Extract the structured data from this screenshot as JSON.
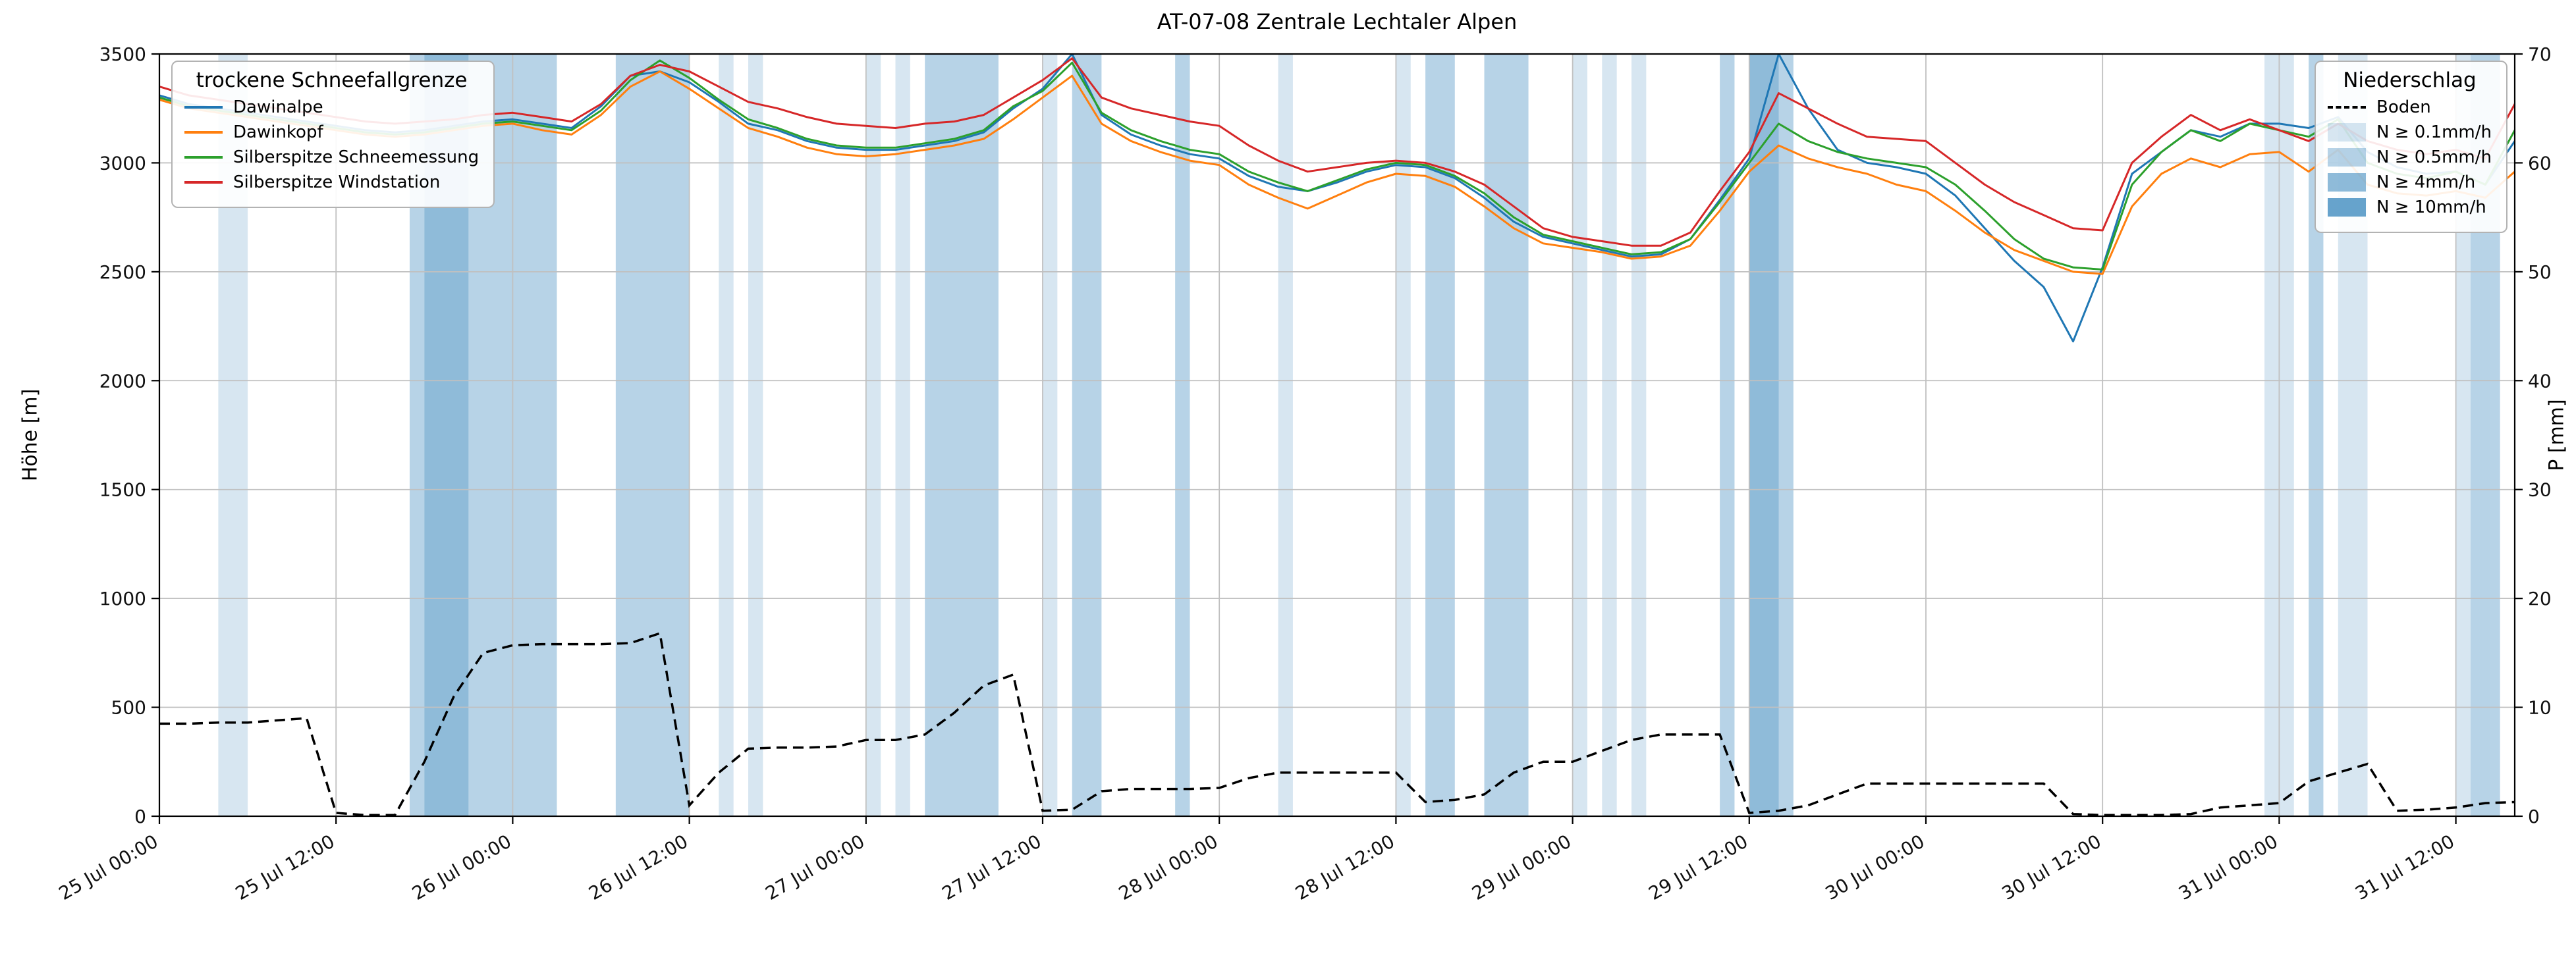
{
  "title": "AT-07-08 Zentrale Lechtaler Alpen",
  "axes": {
    "y_left_label": "Höhe [m]",
    "y_right_label": "P [mm]",
    "y_left_ticks": [
      0,
      500,
      1000,
      1500,
      2000,
      2500,
      3000,
      3500
    ],
    "y_right_ticks": [
      0,
      10,
      20,
      30,
      40,
      50,
      60,
      70
    ],
    "x_tick_hours": [
      0,
      12,
      24,
      36,
      48,
      60,
      72,
      84,
      96,
      108,
      120,
      132,
      144,
      156
    ],
    "x_tick_labels": [
      "25 Jul 00:00",
      "25 Jul 12:00",
      "26 Jul 00:00",
      "26 Jul 12:00",
      "27 Jul 00:00",
      "27 Jul 12:00",
      "28 Jul 00:00",
      "28 Jul 12:00",
      "29 Jul 00:00",
      "29 Jul 12:00",
      "30 Jul 00:00",
      "30 Jul 12:00",
      "31 Jul 00:00",
      "31 Jul 12:00"
    ]
  },
  "legend_left": {
    "title": "trockene Schneefallgrenze",
    "items": [
      {
        "label": "Dawinalpe",
        "color": "#1f77b4"
      },
      {
        "label": "Dawinkopf",
        "color": "#ff7f0e"
      },
      {
        "label": "Silberspitze Schneemessung",
        "color": "#2ca02c"
      },
      {
        "label": "Silberspitze Windstation",
        "color": "#d62728"
      }
    ]
  },
  "legend_right": {
    "title": "Niederschlag",
    "line_item": {
      "label": "Boden",
      "color": "#000000"
    },
    "band_color": "#1f77b4",
    "band_items": [
      {
        "label": "N ≥ 0.1mm/h",
        "alpha": 0.18
      },
      {
        "label": "N ≥ 0.5mm/h",
        "alpha": 0.32
      },
      {
        "label": "N ≥ 4mm/h",
        "alpha": 0.5
      },
      {
        "label": "N ≥ 10mm/h",
        "alpha": 0.68
      }
    ]
  },
  "chart_data": {
    "type": "line",
    "x_unit": "hours since 25 Jul 00:00",
    "xlim": [
      0,
      160
    ],
    "ylim_left": [
      0,
      3500
    ],
    "ylim_right": [
      0,
      70
    ],
    "grid": true,
    "x_hours": [
      0,
      2,
      4,
      6,
      8,
      10,
      12,
      14,
      16,
      18,
      20,
      22,
      24,
      26,
      28,
      30,
      32,
      34,
      36,
      38,
      40,
      42,
      44,
      46,
      48,
      50,
      52,
      54,
      56,
      58,
      60,
      62,
      64,
      66,
      68,
      70,
      72,
      74,
      76,
      78,
      80,
      82,
      84,
      86,
      88,
      90,
      92,
      94,
      96,
      98,
      100,
      102,
      104,
      106,
      108,
      110,
      112,
      114,
      116,
      118,
      120,
      122,
      124,
      126,
      128,
      130,
      132,
      134,
      136,
      138,
      140,
      142,
      144,
      146,
      148,
      150,
      152,
      154,
      156,
      158,
      160
    ],
    "series": [
      {
        "name": "Dawinalpe",
        "color": "#1f77b4",
        "axis": "left",
        "values": [
          3310,
          3270,
          3250,
          3230,
          3210,
          3190,
          3170,
          3150,
          3140,
          3150,
          3170,
          3190,
          3200,
          3180,
          3160,
          3260,
          3400,
          3420,
          3370,
          3280,
          3180,
          3150,
          3100,
          3070,
          3060,
          3060,
          3080,
          3100,
          3140,
          3250,
          3340,
          3500,
          3220,
          3130,
          3080,
          3040,
          3020,
          2940,
          2890,
          2870,
          2910,
          2960,
          2990,
          2980,
          2930,
          2840,
          2730,
          2660,
          2630,
          2600,
          2570,
          2580,
          2650,
          2830,
          3020,
          3500,
          3250,
          3060,
          3000,
          2980,
          2950,
          2850,
          2700,
          2550,
          2430,
          2180,
          2520,
          2950,
          3050,
          3150,
          3120,
          3180,
          3180,
          3160,
          3210,
          3050,
          2980,
          2950,
          2960,
          2900,
          3100
        ]
      },
      {
        "name": "Dawinkopf",
        "color": "#ff7f0e",
        "axis": "left",
        "values": [
          3290,
          3250,
          3230,
          3210,
          3190,
          3170,
          3150,
          3130,
          3120,
          3130,
          3150,
          3170,
          3180,
          3150,
          3130,
          3220,
          3350,
          3420,
          3340,
          3250,
          3160,
          3120,
          3070,
          3040,
          3030,
          3040,
          3060,
          3080,
          3110,
          3200,
          3300,
          3400,
          3180,
          3100,
          3050,
          3010,
          2990,
          2900,
          2840,
          2790,
          2850,
          2910,
          2950,
          2940,
          2890,
          2800,
          2700,
          2630,
          2610,
          2590,
          2560,
          2570,
          2620,
          2780,
          2960,
          3080,
          3020,
          2980,
          2950,
          2900,
          2870,
          2780,
          2680,
          2600,
          2550,
          2500,
          2490,
          2800,
          2950,
          3020,
          2980,
          3040,
          3050,
          2960,
          3060,
          2900,
          2860,
          2850,
          2870,
          2840,
          2960
        ]
      },
      {
        "name": "Silberspitze Schneemessung",
        "color": "#2ca02c",
        "axis": "left",
        "values": [
          3300,
          3260,
          3240,
          3220,
          3200,
          3180,
          3160,
          3140,
          3130,
          3140,
          3160,
          3180,
          3190,
          3170,
          3150,
          3240,
          3380,
          3470,
          3390,
          3290,
          3200,
          3160,
          3110,
          3080,
          3070,
          3070,
          3090,
          3110,
          3150,
          3260,
          3330,
          3460,
          3230,
          3150,
          3100,
          3060,
          3040,
          2960,
          2910,
          2870,
          2920,
          2970,
          3000,
          2990,
          2940,
          2860,
          2750,
          2670,
          2640,
          2610,
          2580,
          2590,
          2650,
          2820,
          3000,
          3180,
          3100,
          3050,
          3020,
          3000,
          2980,
          2900,
          2780,
          2650,
          2560,
          2520,
          2510,
          2900,
          3050,
          3150,
          3100,
          3180,
          3150,
          3120,
          3200,
          3000,
          2950,
          2930,
          2960,
          2900,
          3150
        ]
      },
      {
        "name": "Silberspitze Windstation",
        "color": "#d62728",
        "axis": "left",
        "values": [
          3350,
          3310,
          3290,
          3270,
          3250,
          3230,
          3210,
          3190,
          3180,
          3190,
          3200,
          3220,
          3230,
          3210,
          3190,
          3270,
          3400,
          3450,
          3420,
          3350,
          3280,
          3250,
          3210,
          3180,
          3170,
          3160,
          3180,
          3190,
          3220,
          3300,
          3380,
          3480,
          3300,
          3250,
          3220,
          3190,
          3170,
          3080,
          3010,
          2960,
          2980,
          3000,
          3010,
          3000,
          2960,
          2900,
          2800,
          2700,
          2660,
          2640,
          2620,
          2620,
          2680,
          2870,
          3050,
          3320,
          3250,
          3180,
          3120,
          3110,
          3100,
          3000,
          2900,
          2820,
          2760,
          2700,
          2690,
          3000,
          3120,
          3220,
          3150,
          3200,
          3150,
          3100,
          3180,
          3100,
          3060,
          3040,
          3060,
          3020,
          3270
        ]
      }
    ],
    "precip_series": {
      "name": "Boden",
      "color": "#000000",
      "style": "dashed",
      "axis": "right",
      "values": [
        8.5,
        8.5,
        8.6,
        8.6,
        8.8,
        9.0,
        0.3,
        0.1,
        0.1,
        5.0,
        11.0,
        15.0,
        15.7,
        15.8,
        15.8,
        15.8,
        15.9,
        16.8,
        1.0,
        4.0,
        6.2,
        6.3,
        6.3,
        6.4,
        7.0,
        7.0,
        7.5,
        9.5,
        12.0,
        13.0,
        0.5,
        0.6,
        2.3,
        2.5,
        2.5,
        2.5,
        2.6,
        3.5,
        4.0,
        4.0,
        4.0,
        4.0,
        4.0,
        1.3,
        1.5,
        2.0,
        4.0,
        5.0,
        5.0,
        6.0,
        7.0,
        7.5,
        7.5,
        7.5,
        0.3,
        0.5,
        1.0,
        2.0,
        3.0,
        3.0,
        3.0,
        3.0,
        3.0,
        3.0,
        3.0,
        0.2,
        0.1,
        0.1,
        0.1,
        0.2,
        0.8,
        1.0,
        1.2,
        3.2,
        4.0,
        4.8,
        0.5,
        0.6,
        0.8,
        1.2,
        1.3
      ]
    },
    "precip_bands": [
      {
        "start_h": 4,
        "end_h": 6,
        "level": 0.1
      },
      {
        "start_h": 17,
        "end_h": 18,
        "level": 0.5
      },
      {
        "start_h": 18,
        "end_h": 21,
        "level": 4
      },
      {
        "start_h": 21,
        "end_h": 27,
        "level": 0.5
      },
      {
        "start_h": 31,
        "end_h": 36,
        "level": 0.5
      },
      {
        "start_h": 38,
        "end_h": 39,
        "level": 0.1
      },
      {
        "start_h": 40,
        "end_h": 41,
        "level": 0.1
      },
      {
        "start_h": 48,
        "end_h": 49,
        "level": 0.1
      },
      {
        "start_h": 50,
        "end_h": 51,
        "level": 0.1
      },
      {
        "start_h": 52,
        "end_h": 57,
        "level": 0.5
      },
      {
        "start_h": 60,
        "end_h": 61,
        "level": 0.1
      },
      {
        "start_h": 62,
        "end_h": 64,
        "level": 0.5
      },
      {
        "start_h": 69,
        "end_h": 70,
        "level": 0.5
      },
      {
        "start_h": 76,
        "end_h": 77,
        "level": 0.1
      },
      {
        "start_h": 84,
        "end_h": 85,
        "level": 0.1
      },
      {
        "start_h": 86,
        "end_h": 88,
        "level": 0.5
      },
      {
        "start_h": 90,
        "end_h": 93,
        "level": 0.5
      },
      {
        "start_h": 96,
        "end_h": 97,
        "level": 0.1
      },
      {
        "start_h": 98,
        "end_h": 99,
        "level": 0.1
      },
      {
        "start_h": 100,
        "end_h": 101,
        "level": 0.1
      },
      {
        "start_h": 106,
        "end_h": 107,
        "level": 0.5
      },
      {
        "start_h": 108,
        "end_h": 110,
        "level": 4
      },
      {
        "start_h": 110,
        "end_h": 111,
        "level": 0.5
      },
      {
        "start_h": 143,
        "end_h": 145,
        "level": 0.1
      },
      {
        "start_h": 146,
        "end_h": 147,
        "level": 0.5
      },
      {
        "start_h": 148,
        "end_h": 150,
        "level": 0.1
      },
      {
        "start_h": 156,
        "end_h": 157,
        "level": 0.1
      },
      {
        "start_h": 157,
        "end_h": 159,
        "level": 0.5
      }
    ],
    "band_level_alpha": {
      "0.1": 0.18,
      "0.5": 0.32,
      "4": 0.5,
      "10": 0.68
    }
  }
}
